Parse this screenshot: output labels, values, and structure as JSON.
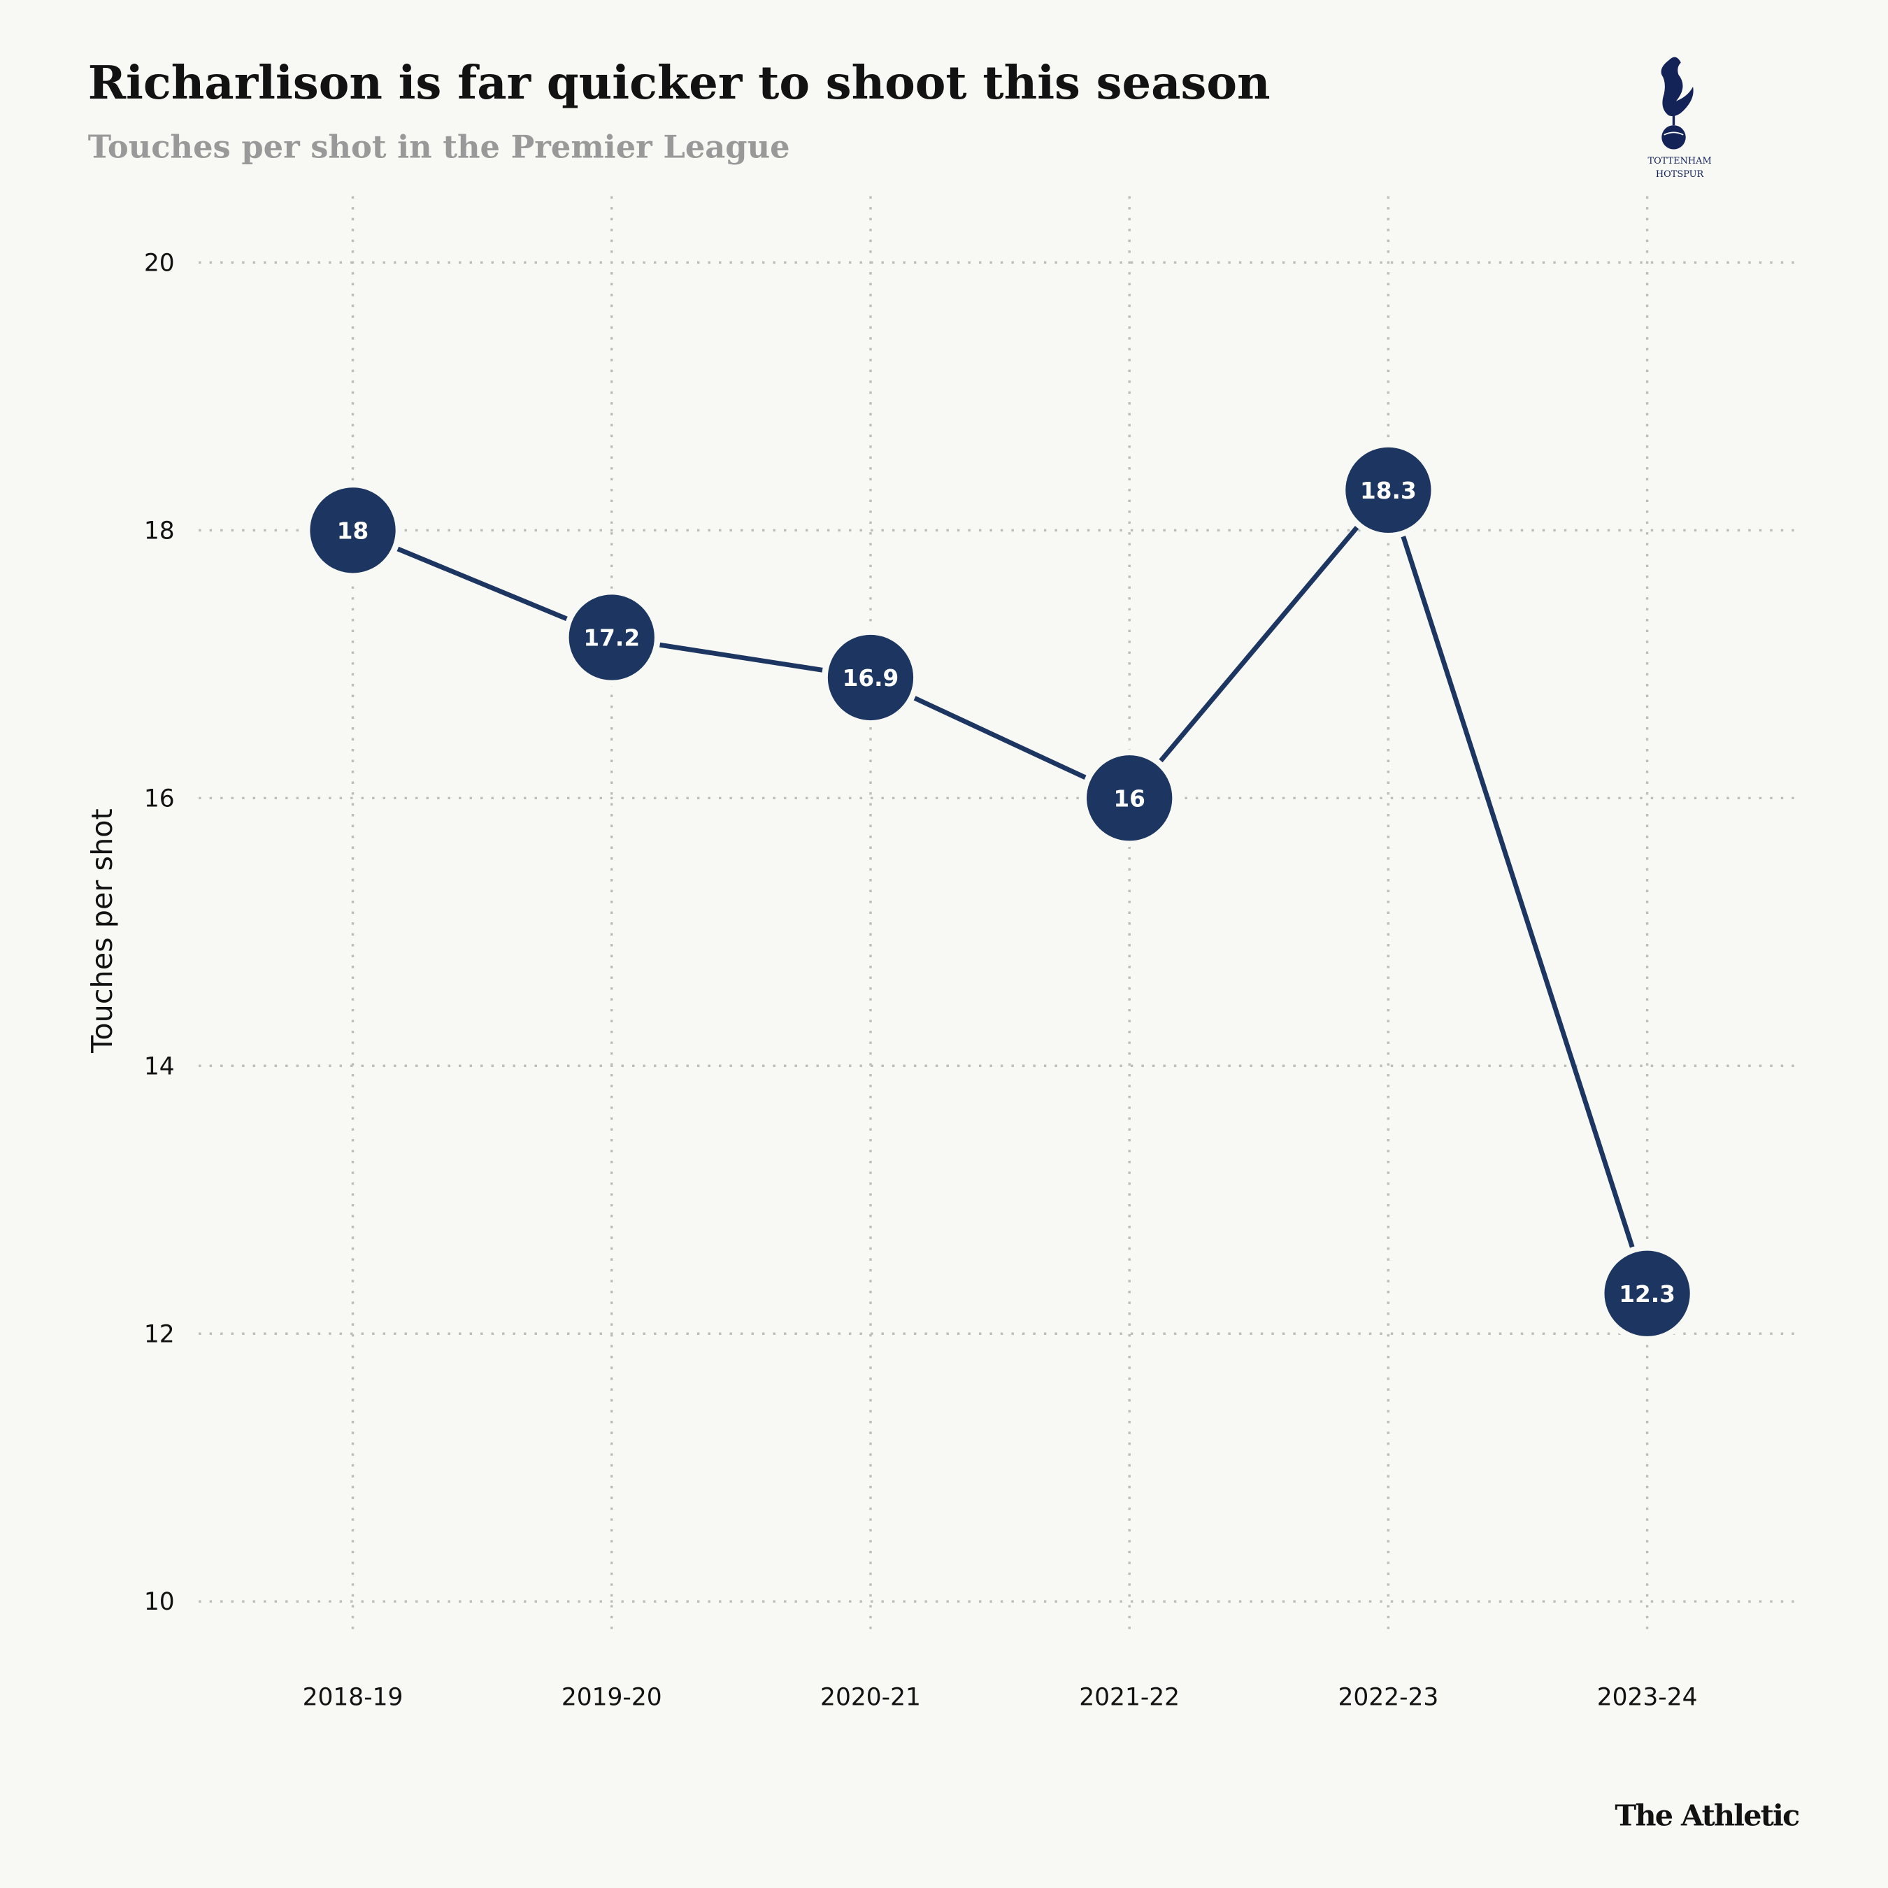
{
  "title": "Richarlison is far quicker to shoot this season",
  "subtitle": "Touches per shot in the Premier League",
  "brand": "The Athletic",
  "logo": {
    "text_line1": "TOTTENHAM",
    "text_line2": "HOTSPUR",
    "icon": "cockerel-on-ball-crest"
  },
  "colors": {
    "series": "#1c3661",
    "background": "#f8f8f4",
    "grid": "#bdbdbd",
    "subtitle": "#999999"
  },
  "chart_data": {
    "type": "line",
    "title": "Richarlison is far quicker to shoot this season",
    "subtitle": "Touches per shot in the Premier League",
    "xlabel": "",
    "ylabel": "Touches per shot",
    "categories": [
      "2018-19",
      "2019-20",
      "2020-21",
      "2021-22",
      "2022-23",
      "2023-24"
    ],
    "values": [
      18,
      17.2,
      16.9,
      16,
      18.3,
      12.3
    ],
    "data_labels": [
      "18",
      "17.2",
      "16.9",
      "16",
      "18.3",
      "12.3"
    ],
    "ylim": [
      10,
      20
    ],
    "yticks": [
      10,
      12,
      14,
      16,
      18,
      20
    ],
    "grid": true,
    "grid_style": "dotted",
    "markers": "large filled circles with value labels",
    "legend": "none"
  }
}
